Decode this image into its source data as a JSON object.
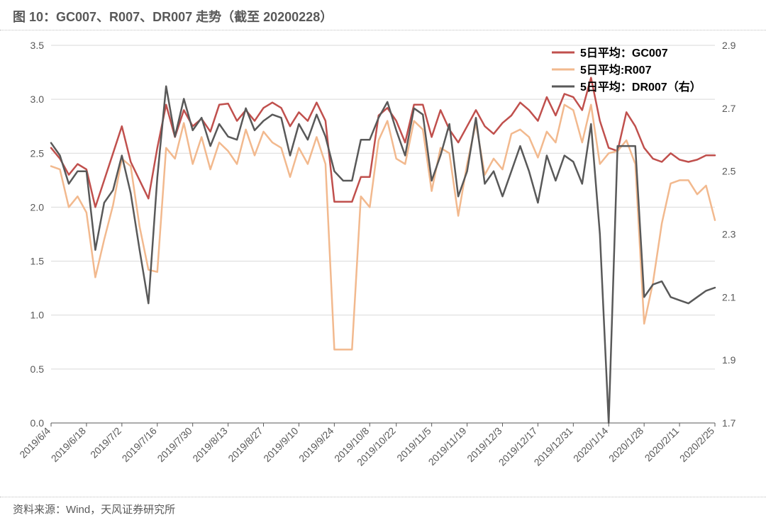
{
  "title": "图 10：GC007、R007、DR007 走势（截至 20200228）",
  "source": "资料来源：Wind，天风证券研究所",
  "chart": {
    "type": "line",
    "background_color": "#ffffff",
    "grid_color": "#d9d9d9",
    "axis_color": "#595959",
    "label_fontsize": 14,
    "legend_fontsize": 16,
    "line_width": 2.5,
    "left_axis": {
      "min": 0.0,
      "max": 3.5,
      "step": 0.5
    },
    "right_axis": {
      "min": 1.7,
      "max": 2.9,
      "step": 0.2
    },
    "x_labels": [
      "2019/6/4",
      "2019/6/18",
      "2019/7/2",
      "2019/7/16",
      "2019/7/30",
      "2019/8/13",
      "2019/8/27",
      "2019/9/10",
      "2019/9/24",
      "2019/10/8",
      "2019/10/22",
      "2019/11/5",
      "2019/11/19",
      "2019/12/3",
      "2019/12/17",
      "2019/12/31",
      "2020/1/14",
      "2020/1/28",
      "2020/2/11",
      "2020/2/25"
    ],
    "legend": {
      "items": [
        {
          "label": "5日平均：GC007",
          "color": "#c0504d"
        },
        {
          "label": "5日平均:R007",
          "color": "#f2b98e"
        },
        {
          "label": "5日平均：DR007（右）",
          "color": "#595959"
        }
      ]
    },
    "series": [
      {
        "name": "GC007",
        "color": "#c0504d",
        "axis": "left",
        "values": [
          2.55,
          2.45,
          2.3,
          2.4,
          2.35,
          2.0,
          2.25,
          2.5,
          2.75,
          2.42,
          2.25,
          2.08,
          2.55,
          2.95,
          2.65,
          2.9,
          2.75,
          2.82,
          2.7,
          2.95,
          2.96,
          2.8,
          2.9,
          2.8,
          2.92,
          2.97,
          2.92,
          2.75,
          2.88,
          2.8,
          2.97,
          2.8,
          2.05,
          2.05,
          2.05,
          2.28,
          2.28,
          2.85,
          2.92,
          2.8,
          2.6,
          2.95,
          2.95,
          2.65,
          2.9,
          2.72,
          2.6,
          2.75,
          2.9,
          2.75,
          2.68,
          2.78,
          2.85,
          2.97,
          2.9,
          2.8,
          3.02,
          2.85,
          3.05,
          3.02,
          2.9,
          3.2,
          2.8,
          2.55,
          2.52,
          2.88,
          2.75,
          2.55,
          2.45,
          2.42,
          2.5,
          2.44,
          2.42,
          2.44,
          2.48,
          2.48
        ]
      },
      {
        "name": "R007",
        "color": "#f2b98e",
        "axis": "left",
        "values": [
          2.38,
          2.35,
          2.0,
          2.1,
          1.95,
          1.35,
          1.7,
          2.02,
          2.45,
          2.38,
          1.82,
          1.42,
          1.4,
          2.55,
          2.45,
          2.78,
          2.4,
          2.65,
          2.35,
          2.6,
          2.52,
          2.4,
          2.72,
          2.48,
          2.7,
          2.6,
          2.55,
          2.28,
          2.55,
          2.4,
          2.65,
          2.4,
          0.68,
          0.68,
          0.68,
          2.1,
          2.0,
          2.62,
          2.8,
          2.45,
          2.4,
          2.8,
          2.72,
          2.15,
          2.55,
          2.5,
          1.92,
          2.4,
          2.78,
          2.3,
          2.45,
          2.35,
          2.68,
          2.72,
          2.65,
          2.46,
          2.7,
          2.6,
          2.95,
          2.9,
          2.6,
          2.95,
          2.4,
          2.5,
          2.52,
          2.62,
          2.4,
          0.92,
          1.3,
          1.85,
          2.22,
          2.25,
          2.25,
          2.12,
          2.2,
          1.88
        ]
      },
      {
        "name": "DR007",
        "color": "#595959",
        "axis": "right",
        "values": [
          2.59,
          2.55,
          2.46,
          2.5,
          2.5,
          2.25,
          2.4,
          2.44,
          2.55,
          2.43,
          2.25,
          2.08,
          2.48,
          2.77,
          2.61,
          2.73,
          2.63,
          2.67,
          2.58,
          2.65,
          2.61,
          2.6,
          2.7,
          2.63,
          2.66,
          2.68,
          2.67,
          2.55,
          2.65,
          2.6,
          2.68,
          2.61,
          2.5,
          2.47,
          2.47,
          2.6,
          2.6,
          2.67,
          2.72,
          2.63,
          2.55,
          2.7,
          2.68,
          2.47,
          2.55,
          2.65,
          2.42,
          2.5,
          2.67,
          2.46,
          2.5,
          2.42,
          2.5,
          2.58,
          2.5,
          2.4,
          2.55,
          2.47,
          2.55,
          2.53,
          2.46,
          2.65,
          2.3,
          1.7,
          2.58,
          2.58,
          2.58,
          2.1,
          2.14,
          2.15,
          2.1,
          2.09,
          2.08,
          2.1,
          2.12,
          2.13
        ]
      }
    ]
  }
}
